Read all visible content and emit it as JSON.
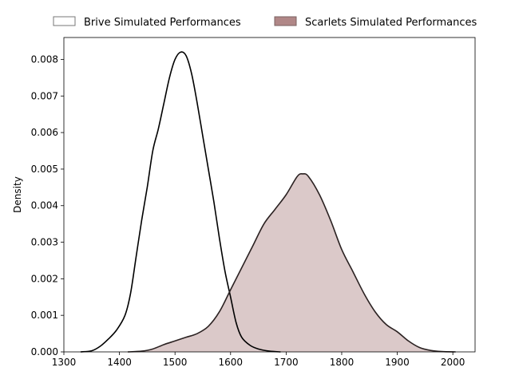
{
  "chart_data": {
    "type": "area",
    "title": "",
    "xlabel": "",
    "ylabel": "Density",
    "xlim": [
      1300,
      2040
    ],
    "ylim": [
      0,
      0.0086
    ],
    "x_ticks": [
      1300,
      1400,
      1500,
      1600,
      1700,
      1800,
      1900,
      2000
    ],
    "y_ticks": [
      0.0,
      0.001,
      0.002,
      0.003,
      0.004,
      0.005,
      0.006,
      0.007,
      0.008
    ],
    "y_tick_labels": [
      "0.000",
      "0.001",
      "0.002",
      "0.003",
      "0.004",
      "0.005",
      "0.006",
      "0.007",
      "0.008"
    ],
    "grid": false,
    "legend_position": "top (outside plot, horizontal)",
    "series": [
      {
        "name": "Brive Simulated Performances",
        "fill": "none",
        "line_color": "#000000",
        "points": [
          [
            1330,
            0.0
          ],
          [
            1350,
            3e-05
          ],
          [
            1365,
            0.00015
          ],
          [
            1380,
            0.00035
          ],
          [
            1395,
            0.0006
          ],
          [
            1410,
            0.001
          ],
          [
            1420,
            0.0016
          ],
          [
            1430,
            0.0026
          ],
          [
            1440,
            0.0036
          ],
          [
            1450,
            0.0045
          ],
          [
            1460,
            0.0055
          ],
          [
            1470,
            0.0061
          ],
          [
            1480,
            0.0068
          ],
          [
            1490,
            0.0075
          ],
          [
            1500,
            0.008
          ],
          [
            1510,
            0.0082
          ],
          [
            1520,
            0.0081
          ],
          [
            1530,
            0.0076
          ],
          [
            1540,
            0.0068
          ],
          [
            1550,
            0.0059
          ],
          [
            1560,
            0.005
          ],
          [
            1570,
            0.0041
          ],
          [
            1580,
            0.0031
          ],
          [
            1590,
            0.0022
          ],
          [
            1600,
            0.0015
          ],
          [
            1610,
            0.0008
          ],
          [
            1620,
            0.0004
          ],
          [
            1635,
            0.00018
          ],
          [
            1650,
            8e-05
          ],
          [
            1670,
            2e-05
          ],
          [
            1690,
            0.0
          ]
        ]
      },
      {
        "name": "Scarlets Simulated Performances",
        "fill": "#b08787",
        "line_color": "#2b2222",
        "points": [
          [
            1415,
            0.0
          ],
          [
            1440,
            2e-05
          ],
          [
            1460,
            8e-05
          ],
          [
            1480,
            0.0002
          ],
          [
            1500,
            0.0003
          ],
          [
            1520,
            0.0004
          ],
          [
            1540,
            0.0005
          ],
          [
            1560,
            0.0007
          ],
          [
            1580,
            0.0011
          ],
          [
            1600,
            0.0017
          ],
          [
            1620,
            0.0023
          ],
          [
            1640,
            0.0029
          ],
          [
            1660,
            0.0035
          ],
          [
            1680,
            0.0039
          ],
          [
            1700,
            0.0043
          ],
          [
            1720,
            0.0048
          ],
          [
            1730,
            0.00487
          ],
          [
            1740,
            0.0048
          ],
          [
            1760,
            0.0043
          ],
          [
            1780,
            0.0036
          ],
          [
            1800,
            0.0028
          ],
          [
            1820,
            0.0022
          ],
          [
            1840,
            0.0016
          ],
          [
            1860,
            0.0011
          ],
          [
            1880,
            0.00075
          ],
          [
            1900,
            0.00055
          ],
          [
            1920,
            0.0003
          ],
          [
            1940,
            0.00012
          ],
          [
            1960,
            4e-05
          ],
          [
            1980,
            1e-05
          ],
          [
            2005,
            0.0
          ]
        ]
      }
    ]
  }
}
